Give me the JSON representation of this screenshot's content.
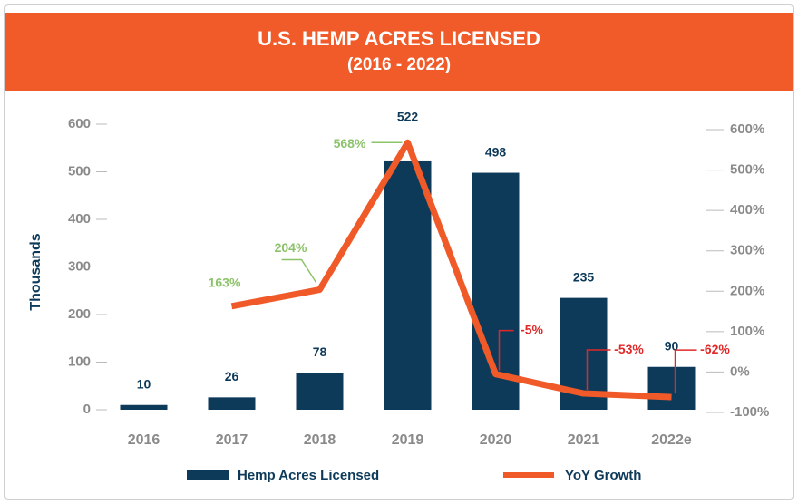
{
  "chart_data": {
    "type": "combo",
    "title": "U.S. HEMP ACRES LICENSED",
    "subtitle": "(2016 - 2022)",
    "y_label": "Thousands",
    "categories": [
      "2016",
      "2017",
      "2018",
      "2019",
      "2020",
      "2021",
      "2022e"
    ],
    "series": [
      {
        "name": "Hemp Acres Licensed",
        "type": "bar",
        "color": "#0e3a5a",
        "values": [
          10,
          26,
          78,
          522,
          498,
          235,
          90
        ]
      },
      {
        "name": "YoY Growth",
        "type": "line",
        "axis": "y2",
        "color": "#f05a28",
        "values": [
          null,
          163,
          204,
          568,
          -5,
          -53,
          -62
        ],
        "value_labels": [
          null,
          "163%",
          "204%",
          "568%",
          "-5%",
          "-53%",
          "-62%"
        ]
      }
    ],
    "ylim": [
      0,
      600
    ],
    "yticks": [
      0,
      100,
      200,
      300,
      400,
      500,
      600
    ],
    "y2lim": [
      -100,
      600
    ],
    "y2ticks": [
      {
        "value": -100,
        "label": "-100%"
      },
      {
        "value": 0,
        "label": "0%"
      },
      {
        "value": 100,
        "label": "100%"
      },
      {
        "value": 200,
        "label": "200%"
      },
      {
        "value": 300,
        "label": "300%"
      },
      {
        "value": 400,
        "label": "400%"
      },
      {
        "value": 500,
        "label": "500%"
      },
      {
        "value": 600,
        "label": "600%"
      }
    ],
    "grid": false,
    "legend": "bottom",
    "header_color": "#f15a29"
  }
}
